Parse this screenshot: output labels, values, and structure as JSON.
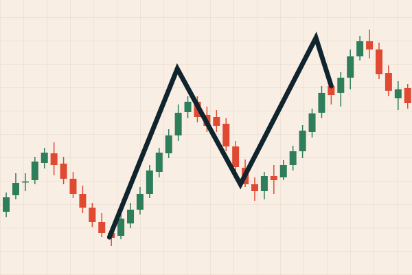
{
  "chart_data": {
    "type": "candlestick",
    "open": [
      92,
      116,
      135,
      138,
      163,
      177,
      162,
      140,
      118,
      98,
      77,
      61,
      57,
      75,
      95,
      118,
      150,
      177,
      203,
      237,
      252,
      233,
      230,
      220,
      187,
      156,
      132,
      122,
      144,
      142,
      160,
      180,
      208,
      236,
      275,
      265,
      287,
      318,
      340,
      328,
      294,
      257,
      272
    ],
    "high": [
      120,
      148,
      148,
      172,
      185,
      193,
      172,
      150,
      130,
      105,
      90,
      70,
      90,
      105,
      128,
      160,
      185,
      212,
      248,
      260,
      260,
      245,
      240,
      228,
      195,
      168,
      142,
      150,
      160,
      167,
      188,
      218,
      242,
      275,
      282,
      295,
      328,
      348,
      357,
      338,
      305,
      282,
      278
    ],
    "low": [
      84,
      110,
      122,
      132,
      155,
      145,
      132,
      112,
      90,
      70,
      55,
      42,
      52,
      68,
      88,
      112,
      142,
      170,
      195,
      228,
      222,
      208,
      208,
      180,
      150,
      128,
      108,
      110,
      118,
      138,
      152,
      170,
      200,
      228,
      248,
      245,
      270,
      312,
      315,
      285,
      260,
      240,
      242
    ],
    "close": [
      113,
      134,
      136,
      165,
      178,
      160,
      140,
      118,
      98,
      77,
      61,
      54,
      82,
      95,
      118,
      152,
      178,
      203,
      236,
      252,
      230,
      217,
      217,
      187,
      157,
      132,
      122,
      144,
      138,
      160,
      180,
      210,
      235,
      265,
      262,
      287,
      318,
      340,
      328,
      292,
      268,
      270,
      250
    ],
    "up_color": "#2e7d5b",
    "down_color": "#e04a32",
    "xlim": [
      -0.65,
      42.45
    ],
    "ylim": [
      0,
      400
    ],
    "overlay": {
      "color": "#10242e",
      "x": [
        10.8,
        17.9,
        24.5,
        32.4,
        34
      ],
      "values": [
        55,
        300,
        132,
        345,
        275
      ]
    }
  }
}
